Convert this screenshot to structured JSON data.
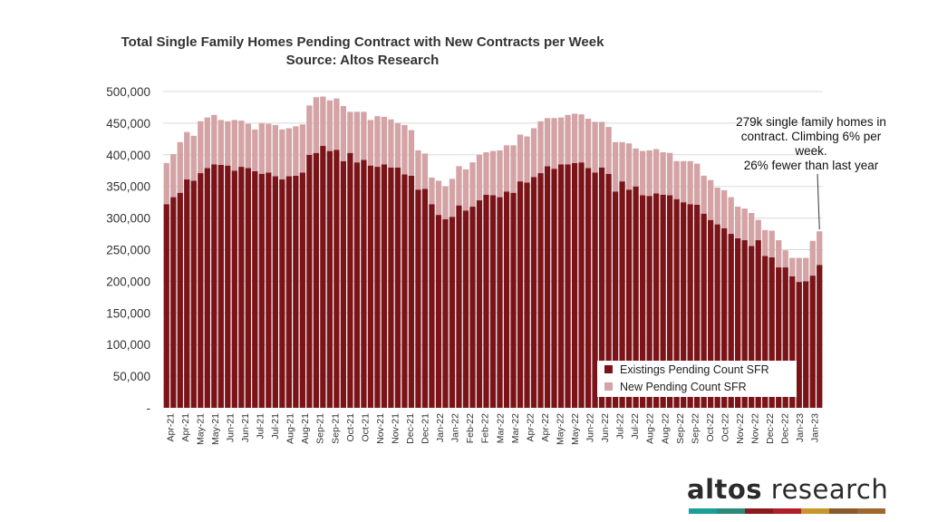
{
  "chart_data": {
    "type": "bar",
    "stacked": true,
    "title": "Total Single Family Homes Pending Contract with New Contracts per Week",
    "subtitle": "Source: Altos Research",
    "ylim": [
      0,
      500000
    ],
    "y_ticks": [
      "-",
      "50,000",
      "100,000",
      "150,000",
      "200,000",
      "250,000",
      "300,000",
      "350,000",
      "400,000",
      "450,000",
      "500,000"
    ],
    "gridlines": true,
    "legend_position": "bottom-right",
    "x_tick_labels": [
      "Apr-21",
      "Apr-21",
      "May-21",
      "May-21",
      "Jun-21",
      "Jun-21",
      "Jul-21",
      "Jul-21",
      "Aug-21",
      "Aug-21",
      "Sep-21",
      "Sep-21",
      "Oct-21",
      "Oct-21",
      "Nov-21",
      "Nov-21",
      "Dec-21",
      "Dec-21",
      "Jan-22",
      "Jan-22",
      "Feb-22",
      "Feb-22",
      "Mar-22",
      "Mar-22",
      "Apr-22",
      "Apr-22",
      "May-22",
      "May-22",
      "Jun-22",
      "Jun-22",
      "Jul-22",
      "Jul-22",
      "Aug-22",
      "Aug-22",
      "Sep-22",
      "Sep-22",
      "Oct-22",
      "Oct-22",
      "Nov-22",
      "Nov-22",
      "Dec-22",
      "Dec-22",
      "Jan-23",
      "Jan-23"
    ],
    "series": [
      {
        "name": "Existings Pending Count SFR",
        "color": "#7b1418",
        "values": [
          322000,
          333000,
          340000,
          361000,
          359000,
          371000,
          379000,
          385000,
          384000,
          383000,
          375000,
          381000,
          379000,
          374000,
          370000,
          372000,
          366000,
          361000,
          366000,
          367000,
          372000,
          400000,
          403000,
          414000,
          406000,
          408000,
          390000,
          403000,
          388000,
          392000,
          383000,
          381000,
          385000,
          380000,
          380000,
          369000,
          367000,
          345000,
          346000,
          322000,
          305000,
          298000,
          302000,
          320000,
          312000,
          318000,
          328000,
          337000,
          336000,
          333000,
          342000,
          340000,
          358000,
          356000,
          365000,
          371000,
          382000,
          378000,
          385000,
          385000,
          387000,
          388000,
          379000,
          372000,
          380000,
          370000,
          342000,
          358000,
          345000,
          350000,
          336000,
          335000,
          339000,
          337000,
          336000,
          330000,
          325000,
          322000,
          321000,
          307000,
          297000,
          290000,
          284000,
          275000,
          268000,
          265000,
          256000,
          265000,
          240000,
          238000,
          222000,
          222000,
          208000,
          199000,
          200000,
          209000,
          226000
        ]
      },
      {
        "name": "New Pending Count SFR",
        "color": "#d4a3a5",
        "values": [
          65000,
          68000,
          80000,
          75000,
          71000,
          82000,
          80000,
          78000,
          71000,
          70000,
          80000,
          73000,
          70000,
          66000,
          80000,
          77000,
          81000,
          79000,
          76000,
          78000,
          76000,
          78000,
          88000,
          78000,
          80000,
          81000,
          87000,
          65000,
          80000,
          76000,
          72000,
          80000,
          75000,
          76000,
          70000,
          78000,
          72000,
          62000,
          56000,
          42000,
          54000,
          52000,
          60000,
          62000,
          65000,
          70000,
          72000,
          67000,
          70000,
          74000,
          73000,
          75000,
          74000,
          73000,
          77000,
          82000,
          76000,
          80000,
          74000,
          78000,
          78000,
          76000,
          78000,
          80000,
          72000,
          74000,
          78000,
          62000,
          73000,
          60000,
          70000,
          72000,
          70000,
          67000,
          67000,
          60000,
          65000,
          68000,
          65000,
          60000,
          63000,
          58000,
          60000,
          58000,
          50000,
          50000,
          52000,
          32000,
          41000,
          42000,
          43000,
          27000,
          29000,
          38000,
          37000,
          55000,
          53000
        ]
      }
    ]
  },
  "annotation": {
    "line1": "279k single family homes in",
    "line2": "contract. Climbing 6% per",
    "line3": "week.",
    "line4": "26% fewer than last year"
  },
  "logo": {
    "word1": "altos",
    "word2": " research",
    "stripe_colors": [
      "#1b9e9a",
      "#2a8a7a",
      "#8a1a1e",
      "#b0202a",
      "#c8962a",
      "#8b5a2b",
      "#a0662e"
    ]
  }
}
